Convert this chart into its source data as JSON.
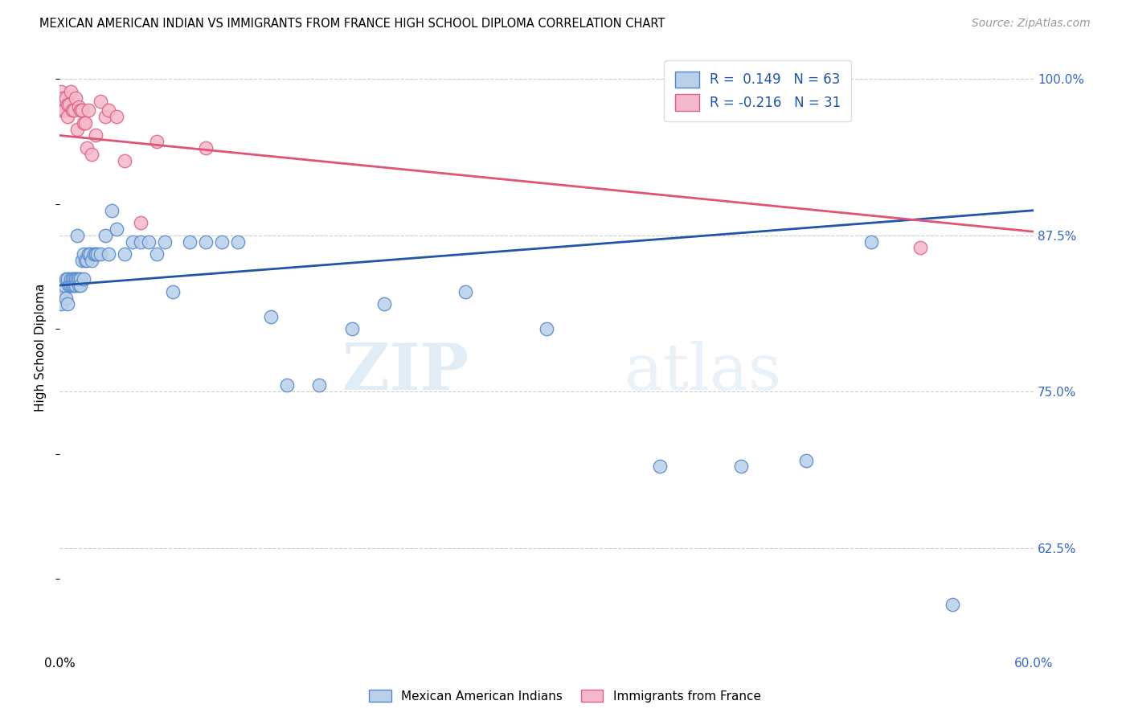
{
  "title": "MEXICAN AMERICAN INDIAN VS IMMIGRANTS FROM FRANCE HIGH SCHOOL DIPLOMA CORRELATION CHART",
  "source": "Source: ZipAtlas.com",
  "ylabel": "High School Diploma",
  "ytick_labels": [
    "100.0%",
    "87.5%",
    "75.0%",
    "62.5%"
  ],
  "ytick_values": [
    1.0,
    0.875,
    0.75,
    0.625
  ],
  "xlim": [
    0.0,
    0.6
  ],
  "ylim": [
    0.545,
    1.025
  ],
  "legend_blue_label": "R =  0.149   N = 63",
  "legend_pink_label": "R = -0.216   N = 31",
  "watermark": "ZIPatlas",
  "blue_x": [
    0.001,
    0.001,
    0.002,
    0.003,
    0.004,
    0.004,
    0.005,
    0.005,
    0.006,
    0.006,
    0.007,
    0.007,
    0.008,
    0.008,
    0.009,
    0.009,
    0.01,
    0.01,
    0.011,
    0.011,
    0.012,
    0.012,
    0.013,
    0.013,
    0.014,
    0.015,
    0.015,
    0.016,
    0.017,
    0.018,
    0.019,
    0.02,
    0.021,
    0.022,
    0.023,
    0.025,
    0.028,
    0.03,
    0.032,
    0.035,
    0.04,
    0.045,
    0.05,
    0.055,
    0.06,
    0.065,
    0.07,
    0.08,
    0.09,
    0.1,
    0.11,
    0.13,
    0.14,
    0.16,
    0.18,
    0.2,
    0.25,
    0.3,
    0.37,
    0.42,
    0.46,
    0.5,
    0.55
  ],
  "blue_y": [
    0.835,
    0.82,
    0.83,
    0.835,
    0.84,
    0.825,
    0.84,
    0.82,
    0.835,
    0.835,
    0.84,
    0.835,
    0.84,
    0.835,
    0.84,
    0.835,
    0.84,
    0.835,
    0.875,
    0.84,
    0.84,
    0.835,
    0.84,
    0.835,
    0.855,
    0.86,
    0.84,
    0.855,
    0.855,
    0.86,
    0.86,
    0.855,
    0.86,
    0.86,
    0.86,
    0.86,
    0.875,
    0.86,
    0.895,
    0.88,
    0.86,
    0.87,
    0.87,
    0.87,
    0.86,
    0.87,
    0.83,
    0.87,
    0.87,
    0.87,
    0.87,
    0.81,
    0.755,
    0.755,
    0.8,
    0.82,
    0.83,
    0.8,
    0.69,
    0.69,
    0.695,
    0.87,
    0.58
  ],
  "pink_x": [
    0.001,
    0.001,
    0.002,
    0.003,
    0.004,
    0.005,
    0.005,
    0.006,
    0.007,
    0.008,
    0.009,
    0.01,
    0.011,
    0.012,
    0.013,
    0.014,
    0.015,
    0.016,
    0.017,
    0.018,
    0.02,
    0.022,
    0.025,
    0.028,
    0.03,
    0.035,
    0.04,
    0.05,
    0.06,
    0.09,
    0.53
  ],
  "pink_y": [
    0.975,
    0.99,
    0.985,
    0.975,
    0.985,
    0.97,
    0.98,
    0.98,
    0.99,
    0.975,
    0.975,
    0.985,
    0.96,
    0.978,
    0.975,
    0.975,
    0.965,
    0.965,
    0.945,
    0.975,
    0.94,
    0.955,
    0.982,
    0.97,
    0.975,
    0.97,
    0.935,
    0.885,
    0.95,
    0.945,
    0.865
  ],
  "blue_dot_color": "#b8d0e8",
  "blue_edge_color": "#5588cc",
  "pink_dot_color": "#f4b8cc",
  "pink_edge_color": "#e06080",
  "blue_line_color": "#2255aa",
  "pink_line_color": "#e05575",
  "background_color": "#ffffff",
  "grid_color": "#cccccc",
  "blue_line_x0": 0.0,
  "blue_line_y0": 0.835,
  "blue_line_x1": 0.6,
  "blue_line_y1": 0.895,
  "pink_line_x0": 0.0,
  "pink_line_y0": 0.955,
  "pink_line_x1": 0.6,
  "pink_line_y1": 0.878
}
